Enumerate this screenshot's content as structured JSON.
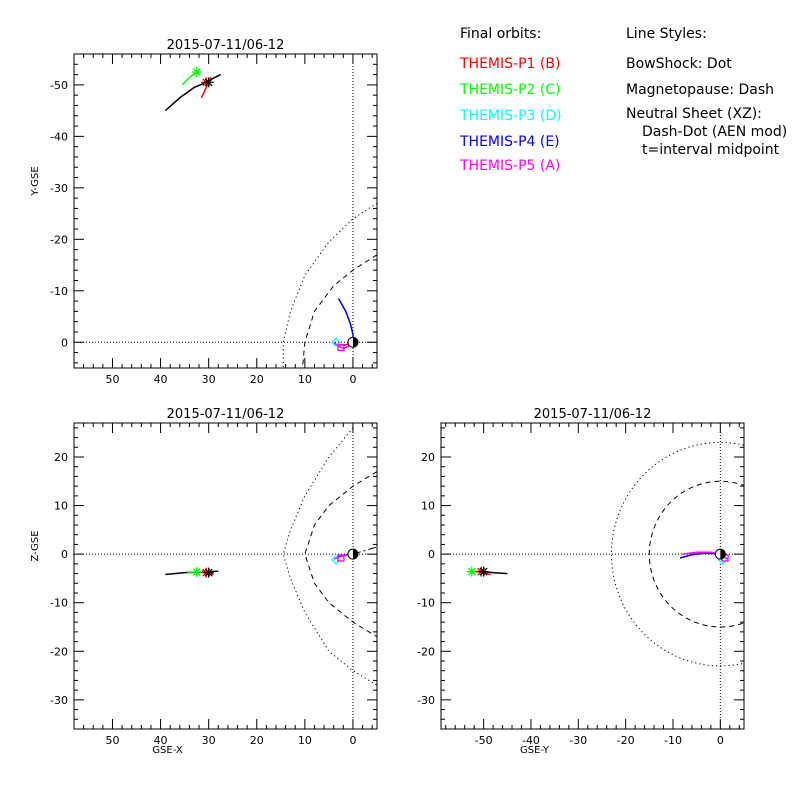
{
  "legend": {
    "orbits_title": "Final orbits:",
    "probes": [
      {
        "label": "THEMIS-P1 (B)",
        "color": "#ff0000"
      },
      {
        "label": "THEMIS-P2 (C)",
        "color": "#00ff00"
      },
      {
        "label": "THEMIS-P3 (D)",
        "color": "#00ffff"
      },
      {
        "label": "THEMIS-P4 (E)",
        "color": "#0000ff"
      },
      {
        "label": "THEMIS-P5 (A)",
        "color": "#ff00ff"
      }
    ],
    "styles_title": "Line Styles:",
    "styles": [
      "BowShock: Dot",
      "Magnetopause: Dash",
      "Neutral Sheet (XZ):",
      "Dash-Dot (AEN mod)",
      "t=interval midpoint"
    ]
  },
  "chart_data": [
    {
      "type": "line",
      "title": "2015-07-11/06-12",
      "xlabel": "",
      "ylabel": "Y-GSE",
      "xlim": [
        58,
        -5
      ],
      "ylim": [
        5,
        -56
      ],
      "xticks": [
        50,
        40,
        30,
        20,
        10,
        0
      ],
      "yticks": [
        0,
        -10,
        -20,
        -30,
        -40,
        -50
      ],
      "grid": false,
      "reference_lines": [
        {
          "axis": "y",
          "value": 0
        },
        {
          "axis": "x",
          "value": 0
        }
      ],
      "boundaries": [
        {
          "name": "BowShock",
          "points": [
            [
              -5,
              -27
            ],
            [
              0,
              -24
            ],
            [
              5,
              -19.5
            ],
            [
              10,
              -13
            ],
            [
              13,
              -6
            ],
            [
              14.5,
              0
            ],
            [
              14.5,
              5
            ]
          ]
        },
        {
          "name": "Magnetopause",
          "points": [
            [
              -5,
              -17
            ],
            [
              0,
              -14
            ],
            [
              4,
              -11
            ],
            [
              8,
              -6
            ],
            [
              10,
              0
            ],
            [
              10.5,
              5
            ]
          ]
        }
      ],
      "series": [
        {
          "color": "#000000",
          "x": [
            39,
            36,
            33,
            30.5,
            29,
            27.5
          ],
          "y": [
            -45,
            -47.5,
            -49.5,
            -50.5,
            -51.3,
            -52
          ]
        },
        {
          "color": "#00ff00",
          "x": [
            35.5,
            34.5,
            33.5,
            32.5
          ],
          "y": [
            -50,
            -51,
            -51.8,
            -52.5
          ]
        },
        {
          "color": "#ff0000",
          "x": [
            31.5,
            31,
            30.5,
            30,
            29.5
          ],
          "y": [
            -47.5,
            -48.5,
            -49.5,
            -50.5,
            -51.5
          ]
        },
        {
          "color": "#0000ff",
          "x": [
            3,
            1.5,
            0.5,
            0,
            0
          ],
          "y": [
            -8.5,
            -6,
            -3.5,
            -1.5,
            0
          ]
        },
        {
          "color": "#ff00ff",
          "x": [
            4,
            3,
            2,
            1,
            0
          ],
          "y": [
            0,
            0.8,
            1.2,
            0.8,
            0
          ]
        },
        {
          "color": "#ff0000",
          "x": [
            3,
            1.5,
            0.5,
            0
          ],
          "y": [
            0.5,
            0.5,
            0.2,
            0
          ]
        }
      ],
      "markers": [
        {
          "probe": "P2",
          "color": "#00ff00",
          "shape": "star",
          "x": 32.5,
          "y": -52.5
        },
        {
          "probe": "P1",
          "color": "#ff0000",
          "shape": "star",
          "x": 30.5,
          "y": -50.5
        },
        {
          "probe": "P5",
          "color": "#000000",
          "shape": "star",
          "x": 30,
          "y": -50.5
        },
        {
          "probe": "P3",
          "color": "#00ffff",
          "shape": "diamond",
          "x": 3.5,
          "y": 0
        },
        {
          "probe": "P5",
          "color": "#ff00ff",
          "shape": "square",
          "x": 2.5,
          "y": 1
        },
        {
          "probe": "Earth",
          "color": "#000000",
          "shape": "earth",
          "x": 0,
          "y": 0
        }
      ]
    },
    {
      "type": "line",
      "title": "2015-07-11/06-12",
      "xlabel": "GSE-X",
      "ylabel": "Z-GSE",
      "xlim": [
        58,
        -5
      ],
      "ylim": [
        -36,
        27
      ],
      "xticks": [
        50,
        40,
        30,
        20,
        10,
        0
      ],
      "yticks": [
        20,
        10,
        0,
        -10,
        -20,
        -30
      ],
      "grid": false,
      "reference_lines": [
        {
          "axis": "y",
          "value": 0
        },
        {
          "axis": "x",
          "value": 0
        }
      ],
      "boundaries": [
        {
          "name": "BowShock",
          "points": [
            [
              0,
              26
            ],
            [
              5,
              20
            ],
            [
              10,
              12
            ],
            [
              13,
              5
            ],
            [
              14.5,
              0
            ],
            [
              13,
              -5
            ],
            [
              10,
              -12
            ],
            [
              5,
              -20
            ],
            [
              0,
              -24
            ],
            [
              -5,
              -27
            ]
          ]
        },
        {
          "name": "Magnetopause",
          "points": [
            [
              -5,
              17
            ],
            [
              0,
              14
            ],
            [
              5,
              10
            ],
            [
              8,
              6
            ],
            [
              10,
              0
            ],
            [
              8,
              -6
            ],
            [
              5,
              -10
            ],
            [
              0,
              -14
            ],
            [
              -5,
              -17
            ]
          ]
        },
        {
          "name": "Neutral Sheet",
          "points": [
            [
              0,
              0
            ],
            [
              -5,
              1.5
            ]
          ]
        }
      ],
      "series": [
        {
          "color": "#000000",
          "x": [
            39,
            35,
            31,
            28
          ],
          "y": [
            -4.2,
            -3.8,
            -3.7,
            -3.5
          ]
        },
        {
          "color": "#00ff00",
          "x": [
            34.5,
            33
          ],
          "y": [
            -3.7,
            -3.7
          ]
        },
        {
          "color": "#ff0000",
          "x": [
            31.5,
            30,
            29
          ],
          "y": [
            -3.5,
            -3.8,
            -4.2
          ]
        },
        {
          "color": "#0000ff",
          "x": [
            3,
            1.5,
            0
          ],
          "y": [
            -0.5,
            -0.2,
            0
          ]
        },
        {
          "color": "#ff00ff",
          "x": [
            4,
            2.5,
            1,
            0
          ],
          "y": [
            -1,
            -0.5,
            -0.1,
            0
          ]
        }
      ],
      "markers": [
        {
          "probe": "P2",
          "color": "#00ff00",
          "shape": "star",
          "x": 32.5,
          "y": -3.7
        },
        {
          "probe": "P1",
          "color": "#ff0000",
          "shape": "star",
          "x": 30.5,
          "y": -3.8
        },
        {
          "probe": "P5",
          "color": "#000000",
          "shape": "star",
          "x": 30,
          "y": -3.8
        },
        {
          "probe": "P3",
          "color": "#00ffff",
          "shape": "diamond",
          "x": 3.5,
          "y": -1.2
        },
        {
          "probe": "P5",
          "color": "#ff00ff",
          "shape": "square",
          "x": 2.5,
          "y": -0.8
        },
        {
          "probe": "Earth",
          "color": "#000000",
          "shape": "earth",
          "x": 0,
          "y": 0
        }
      ]
    },
    {
      "type": "line",
      "title": "2015-07-11/06-12",
      "xlabel": "GSE-Y",
      "ylabel": "",
      "xlim": [
        -59,
        5
      ],
      "ylim": [
        -36,
        27
      ],
      "xticks": [
        -50,
        -40,
        -30,
        -20,
        -10,
        0
      ],
      "yticks": [
        20,
        10,
        0,
        -10,
        -20,
        -30
      ],
      "grid": false,
      "reference_lines": [
        {
          "axis": "y",
          "value": 0
        },
        {
          "axis": "x",
          "value": 0
        }
      ],
      "boundaries": [
        {
          "name": "BowShock",
          "shape": "circle",
          "cx": 0,
          "cy": 0,
          "r": 23
        },
        {
          "name": "Magnetopause",
          "shape": "circle",
          "cx": 0,
          "cy": 0,
          "r": 15
        }
      ],
      "series": [
        {
          "color": "#000000",
          "x": [
            -52,
            -50,
            -48,
            -45
          ],
          "y": [
            -3.6,
            -3.6,
            -3.8,
            -4
          ]
        },
        {
          "color": "#ff0000",
          "x": [
            -51.5,
            -50,
            -48.5
          ],
          "y": [
            -3.5,
            -3.8,
            -4.2
          ]
        },
        {
          "color": "#00ff00",
          "x": [
            -53,
            -51.5
          ],
          "y": [
            -3.6,
            -3.6
          ]
        },
        {
          "color": "#0000ff",
          "x": [
            -8.5,
            -6,
            -3,
            0
          ],
          "y": [
            -0.8,
            -0.1,
            0.2,
            0
          ]
        },
        {
          "color": "#ff00ff",
          "x": [
            -8,
            -5,
            -2,
            0,
            1.5
          ],
          "y": [
            0,
            0.4,
            0.4,
            0,
            -1
          ]
        }
      ],
      "markers": [
        {
          "probe": "P2",
          "color": "#00ff00",
          "shape": "star",
          "x": -52.5,
          "y": -3.6
        },
        {
          "probe": "P1",
          "color": "#ff0000",
          "shape": "star",
          "x": -50.5,
          "y": -3.6
        },
        {
          "probe": "P5",
          "color": "#000000",
          "shape": "star",
          "x": -50,
          "y": -3.6
        },
        {
          "probe": "P3",
          "color": "#00ffff",
          "shape": "diamond",
          "x": 0.5,
          "y": -1.2
        },
        {
          "probe": "P5",
          "color": "#ff00ff",
          "shape": "square",
          "x": 1,
          "y": -0.8
        },
        {
          "probe": "Earth",
          "color": "#000000",
          "shape": "earth",
          "x": 0,
          "y": 0
        }
      ]
    }
  ]
}
